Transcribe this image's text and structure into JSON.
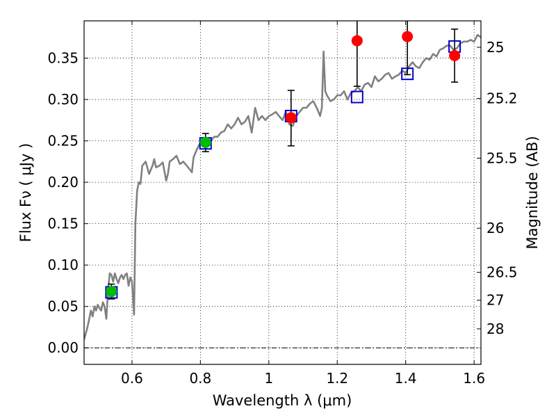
{
  "chart_data": {
    "type": "scatter",
    "xlabel": "Wavelength  λ (μm)",
    "ylabel": "Flux  Fν  ( μJy )",
    "y2label": "Magnitude (AB)",
    "xlim": [
      0.46,
      1.62
    ],
    "ylim": [
      -0.02,
      0.395
    ],
    "grid": true,
    "xticks": [
      0.6,
      0.8,
      1.0,
      1.2,
      1.4,
      1.6
    ],
    "xtick_labels": [
      "0.6",
      "0.8",
      "1",
      "1.2",
      "1.4",
      "1.6"
    ],
    "yticks": [
      0.0,
      0.05,
      0.1,
      0.15,
      0.2,
      0.25,
      0.3,
      0.35
    ],
    "ytick_labels": [
      "0.00",
      "0.05",
      "0.10",
      "0.15",
      "0.20",
      "0.25",
      "0.30",
      "0.35"
    ],
    "y2ticks": [
      {
        "flux": 0.3631,
        "label": "25"
      },
      {
        "flux": 0.3013,
        "label": "25.2"
      },
      {
        "flux": 0.2291,
        "label": "25.5"
      },
      {
        "flux": 0.1445,
        "label": "26"
      },
      {
        "flux": 0.0912,
        "label": "26.5"
      },
      {
        "flux": 0.0575,
        "label": "27"
      },
      {
        "flux": 0.0229,
        "label": "28"
      }
    ],
    "colors": {
      "template": "#808080",
      "model": "#0000cc",
      "green": "#00bb00",
      "red": "#ff0000",
      "errorbar": "#000000"
    },
    "series": [
      {
        "style": "line",
        "x": [
          0.46,
          0.47,
          0.475,
          0.48,
          0.485,
          0.49,
          0.495,
          0.5,
          0.505,
          0.51,
          0.515,
          0.52,
          0.525,
          0.53,
          0.535,
          0.54,
          0.545,
          0.55,
          0.555,
          0.56,
          0.565,
          0.57,
          0.575,
          0.58,
          0.585,
          0.59,
          0.595,
          0.6,
          0.603,
          0.606,
          0.61,
          0.615,
          0.62,
          0.625,
          0.63,
          0.64,
          0.65,
          0.66,
          0.665,
          0.67,
          0.68,
          0.69,
          0.7,
          0.705,
          0.71,
          0.72,
          0.73,
          0.74,
          0.75,
          0.76,
          0.77,
          0.775,
          0.78,
          0.79,
          0.8,
          0.81,
          0.82,
          0.83,
          0.84,
          0.85,
          0.86,
          0.87,
          0.88,
          0.89,
          0.9,
          0.91,
          0.92,
          0.93,
          0.94,
          0.95,
          0.96,
          0.97,
          0.98,
          0.99,
          1.0,
          1.01,
          1.02,
          1.03,
          1.04,
          1.05,
          1.06,
          1.07,
          1.08,
          1.09,
          1.1,
          1.11,
          1.12,
          1.13,
          1.14,
          1.15,
          1.155,
          1.16,
          1.165,
          1.17,
          1.18,
          1.19,
          1.2,
          1.21,
          1.22,
          1.23,
          1.24,
          1.25,
          1.26,
          1.27,
          1.28,
          1.29,
          1.3,
          1.31,
          1.32,
          1.33,
          1.34,
          1.35,
          1.36,
          1.37,
          1.38,
          1.39,
          1.4,
          1.41,
          1.42,
          1.43,
          1.44,
          1.45,
          1.46,
          1.47,
          1.48,
          1.49,
          1.5,
          1.51,
          1.52,
          1.53,
          1.54,
          1.55,
          1.56,
          1.57,
          1.58,
          1.59,
          1.6,
          1.61,
          1.62
        ],
        "y": [
          0.01,
          0.025,
          0.035,
          0.045,
          0.038,
          0.05,
          0.045,
          0.052,
          0.048,
          0.045,
          0.055,
          0.05,
          0.035,
          0.07,
          0.09,
          0.088,
          0.08,
          0.09,
          0.083,
          0.078,
          0.085,
          0.088,
          0.083,
          0.088,
          0.09,
          0.075,
          0.085,
          0.08,
          0.06,
          0.04,
          0.15,
          0.19,
          0.2,
          0.198,
          0.22,
          0.225,
          0.21,
          0.22,
          0.228,
          0.218,
          0.22,
          0.224,
          0.202,
          0.21,
          0.225,
          0.228,
          0.232,
          0.222,
          0.225,
          0.22,
          0.215,
          0.212,
          0.23,
          0.24,
          0.248,
          0.245,
          0.25,
          0.25,
          0.255,
          0.255,
          0.26,
          0.262,
          0.27,
          0.265,
          0.27,
          0.278,
          0.27,
          0.273,
          0.28,
          0.26,
          0.29,
          0.275,
          0.28,
          0.275,
          0.28,
          0.282,
          0.285,
          0.28,
          0.275,
          0.285,
          0.27,
          0.268,
          0.28,
          0.285,
          0.29,
          0.29,
          0.295,
          0.298,
          0.29,
          0.28,
          0.29,
          0.358,
          0.31,
          0.305,
          0.298,
          0.3,
          0.305,
          0.305,
          0.31,
          0.3,
          0.308,
          0.31,
          0.315,
          0.31,
          0.318,
          0.32,
          0.315,
          0.328,
          0.322,
          0.325,
          0.33,
          0.332,
          0.325,
          0.328,
          0.33,
          0.335,
          0.332,
          0.34,
          0.345,
          0.34,
          0.338,
          0.345,
          0.35,
          0.348,
          0.355,
          0.352,
          0.36,
          0.362,
          0.365,
          0.365,
          0.36,
          0.362,
          0.368,
          0.37,
          0.37,
          0.372,
          0.37,
          0.378,
          0.375
        ]
      },
      {
        "style": "open-square",
        "color": "model",
        "x": [
          0.54,
          0.815,
          1.065,
          1.258,
          1.405,
          1.543
        ],
        "y": [
          0.067,
          0.247,
          0.28,
          0.303,
          0.331,
          0.364
        ]
      },
      {
        "style": "filled-circle",
        "color": "green",
        "x": [
          0.54,
          0.815
        ],
        "y": [
          0.068,
          0.248
        ],
        "err_low": [
          0.059,
          0.237
        ],
        "err_high": [
          0.077,
          0.259
        ]
      },
      {
        "style": "filled-circle",
        "color": "red",
        "x": [
          1.065,
          1.258,
          1.405,
          1.543
        ],
        "y": [
          0.278,
          0.371,
          0.376,
          0.353
        ],
        "err_low": [
          0.244,
          0.316,
          0.33,
          0.321
        ],
        "err_high": [
          0.311,
          0.395,
          0.395,
          0.385
        ]
      }
    ]
  }
}
